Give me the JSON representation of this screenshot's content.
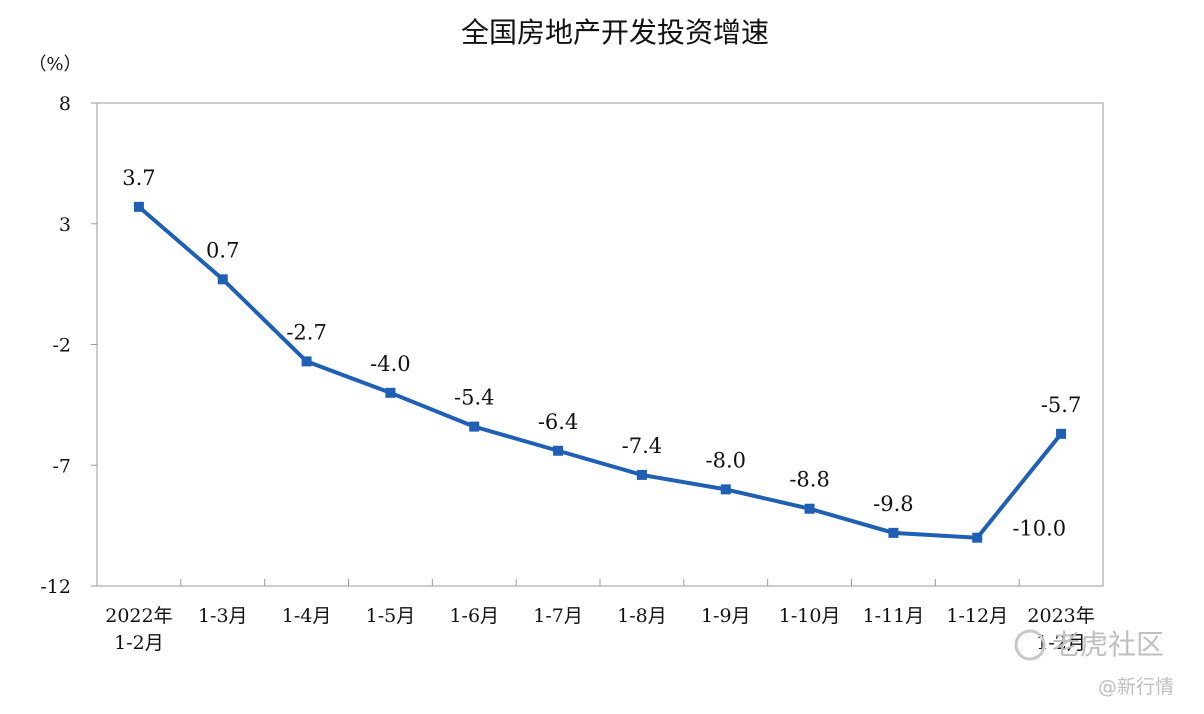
{
  "chart_data": {
    "type": "line",
    "title": "全国房地产开发投资增速",
    "y_unit": "（%）",
    "categories": [
      [
        "2022年",
        "1-2月"
      ],
      [
        "1-3月"
      ],
      [
        "1-4月"
      ],
      [
        "1-5月"
      ],
      [
        "1-6月"
      ],
      [
        "1-7月"
      ],
      [
        "1-8月"
      ],
      [
        "1-9月"
      ],
      [
        "1-10月"
      ],
      [
        "1-11月"
      ],
      [
        "1-12月"
      ],
      [
        "2023年",
        "1-2月"
      ]
    ],
    "values": [
      3.7,
      0.7,
      -2.7,
      -4.0,
      -5.4,
      -6.4,
      -7.4,
      -8.0,
      -8.8,
      -9.8,
      -10.0,
      -5.7
    ],
    "value_labels": [
      "3.7",
      "0.7",
      "-2.7",
      "-4.0",
      "-5.4",
      "-6.4",
      "-7.4",
      "-8.0",
      "-8.8",
      "-9.8",
      "-10.0",
      "-5.7"
    ],
    "ylim": [
      -12,
      8
    ],
    "yticks": [
      8,
      3,
      -2,
      -7,
      -12
    ],
    "grid": false,
    "line_color": "#1f5fb4"
  },
  "watermark": {
    "line1": "老虎社区",
    "line2": "@新行情"
  }
}
